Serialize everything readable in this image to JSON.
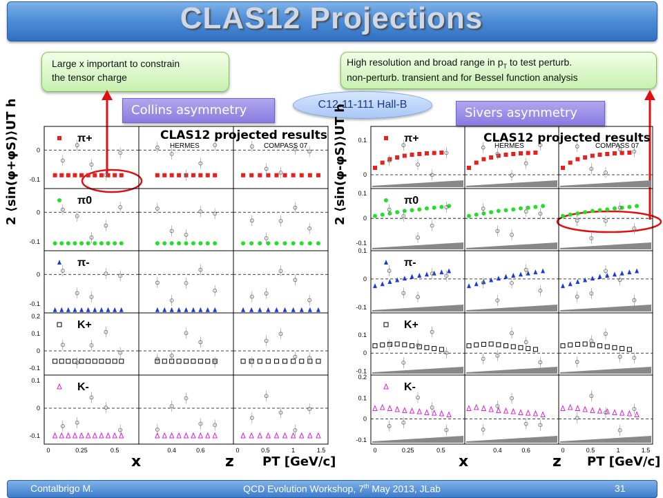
{
  "slide": {
    "title": "CLAS12 Projections",
    "callout_left": [
      "Large x important to constrain",
      "the tensor charge"
    ],
    "callout_right": [
      "High resolution and broad range in p",
      "T",
      " to test perturb.",
      "non-perturb. transient and for Bessel function analysis"
    ],
    "experiment_label": "C12-11-111   Hall-B",
    "collins_label": "Collins asymmetry",
    "sivers_label": "Sivers asymmetry",
    "footer": {
      "author": "Contalbrigo M.",
      "event_pre": "QCD Evolution Workshop, 7",
      "event_sup": "th",
      "event_post": " May 2013, JLab",
      "page": "31"
    }
  },
  "chart_data": [
    {
      "type": "scatter",
      "title": "CLAS12 projected results",
      "ylabel": "2 ⟨sin(φ+φS)⟩UT h",
      "xlabels": [
        "x",
        "z",
        "PT [GeV/c]"
      ],
      "legend": [
        "HERMES",
        "COMPASS 07"
      ],
      "rows": [
        {
          "hadron": "π+",
          "yticks": [
            "0",
            "-0.1"
          ],
          "color": "#e8201c",
          "marker": "square-filled",
          "clas12": {
            "x": [
              0.05,
              0.1,
              0.15,
              0.2,
              0.25,
              0.3,
              0.35,
              0.4,
              0.45,
              0.5,
              0.55
            ],
            "z": [
              0.3,
              0.35,
              0.4,
              0.45,
              0.5,
              0.55,
              0.6,
              0.65,
              0.7
            ],
            "pt": [
              0.1,
              0.25,
              0.4,
              0.55,
              0.7,
              0.85,
              1.0,
              1.15,
              1.3,
              1.45
            ],
            "y": -0.085
          }
        },
        {
          "hadron": "π0",
          "yticks": [
            "0",
            "-0.1"
          ],
          "color": "#22e02a",
          "marker": "circle-filled",
          "clas12": {
            "x": [
              0.05,
              0.1,
              0.15,
              0.2,
              0.25,
              0.3,
              0.35,
              0.4,
              0.45,
              0.5,
              0.55
            ],
            "z": [
              0.3,
              0.35,
              0.4,
              0.45,
              0.5,
              0.55,
              0.6,
              0.65,
              0.7
            ],
            "pt": [
              0.1,
              0.25,
              0.4,
              0.55,
              0.7,
              0.85,
              1.0,
              1.15,
              1.3,
              1.45
            ],
            "y": -0.105
          }
        },
        {
          "hadron": "π-",
          "yticks": [
            "0",
            "-0.1"
          ],
          "color": "#1a3cd8",
          "marker": "triangle-filled",
          "clas12": {
            "x": [
              0.05,
              0.1,
              0.15,
              0.2,
              0.25,
              0.3,
              0.35,
              0.4,
              0.45,
              0.5,
              0.55
            ],
            "z": [
              0.3,
              0.35,
              0.4,
              0.45,
              0.5,
              0.55,
              0.6,
              0.65,
              0.7
            ],
            "pt": [
              0.1,
              0.25,
              0.4,
              0.55,
              0.7,
              0.85,
              1.0,
              1.15,
              1.3,
              1.45
            ],
            "y": -0.12
          }
        },
        {
          "hadron": "K+",
          "yticks": [
            "0.2",
            "0.1",
            "0",
            "-0.1"
          ],
          "color": "#000000",
          "marker": "square-open",
          "clas12": {
            "x": [
              0.05,
              0.1,
              0.15,
              0.2,
              0.25,
              0.3,
              0.35,
              0.4,
              0.45,
              0.5,
              0.55
            ],
            "z": [
              0.3,
              0.35,
              0.4,
              0.45,
              0.5,
              0.55,
              0.6,
              0.65,
              0.7
            ],
            "pt": [
              0.1,
              0.25,
              0.4,
              0.55,
              0.7,
              0.85,
              1.0,
              1.15,
              1.3,
              1.45
            ],
            "y": -0.06
          }
        },
        {
          "hadron": "K-",
          "yticks": [
            "0.1",
            "0",
            "-0.1"
          ],
          "color": "#e020d8",
          "marker": "triangle-open",
          "clas12": {
            "x": [
              0.05,
              0.1,
              0.15,
              0.2,
              0.25,
              0.3,
              0.35,
              0.4,
              0.45,
              0.5,
              0.55
            ],
            "z": [
              0.3,
              0.35,
              0.4,
              0.45,
              0.5,
              0.55,
              0.6,
              0.65,
              0.7
            ],
            "pt": [
              0.1,
              0.25,
              0.4,
              0.55,
              0.7,
              0.85,
              1.0,
              1.15,
              1.3,
              1.45
            ],
            "y": -0.1
          }
        }
      ],
      "xticks": {
        "x": [
          "0",
          "0.25",
          "0.5"
        ],
        "z": [
          "0.4",
          "0.6"
        ],
        "pt": [
          "0",
          "0.5",
          "1",
          "1.5"
        ]
      }
    },
    {
      "type": "scatter",
      "title": "CLAS12 projected results",
      "ylabel": "2 ⟨sin(φ-φS)⟩UT h",
      "xlabels": [
        "x",
        "z",
        "PT [GeV/c]"
      ],
      "legend": [
        "HERMES",
        "COMPASS 07"
      ],
      "rows": [
        {
          "hadron": "π+",
          "yticks": [
            "0.1",
            "0"
          ],
          "color": "#e8201c",
          "marker": "square-filled",
          "clas12": {
            "x": [
              0.05,
              0.1,
              0.15,
              0.2,
              0.25,
              0.3,
              0.35,
              0.4,
              0.45,
              0.5
            ],
            "y": [
              0.02,
              0.035,
              0.045,
              0.05,
              0.055,
              0.058,
              0.06,
              0.062,
              0.063,
              0.064
            ]
          }
        },
        {
          "hadron": "π0",
          "yticks": [
            "0.1",
            "0",
            "-0.1"
          ],
          "color": "#22e02a",
          "marker": "circle-filled",
          "clas12": {
            "x": [
              0.05,
              0.1,
              0.15,
              0.2,
              0.25,
              0.3,
              0.35,
              0.4,
              0.45,
              0.5,
              0.55
            ],
            "y": [
              0.01,
              0.015,
              0.02,
              0.025,
              0.03,
              0.033,
              0.036,
              0.04,
              0.043,
              0.046,
              0.05
            ]
          }
        },
        {
          "hadron": "π-",
          "yticks": [
            "0.1",
            "0",
            "-0.1"
          ],
          "color": "#1a3cd8",
          "marker": "triangle-filled",
          "clas12": {
            "x": [
              0.05,
              0.1,
              0.15,
              0.2,
              0.25,
              0.3,
              0.35,
              0.4,
              0.45,
              0.5,
              0.55
            ],
            "y": [
              -0.025,
              -0.018,
              -0.01,
              -0.004,
              0.002,
              0.008,
              0.012,
              0.016,
              0.02,
              0.024,
              0.028
            ]
          }
        },
        {
          "hadron": "K+",
          "yticks": [
            "0.1",
            "0",
            "-0.1"
          ],
          "color": "#000000",
          "marker": "square-open",
          "clas12": {
            "x": [
              0.05,
              0.1,
              0.15,
              0.2,
              0.25,
              0.3,
              0.35,
              0.4,
              0.45,
              0.5
            ],
            "y": [
              0.04,
              0.045,
              0.048,
              0.05,
              0.046,
              0.04,
              0.035,
              0.03,
              0.025,
              0.02
            ]
          }
        },
        {
          "hadron": "K-",
          "yticks": [
            "0.2",
            "0.1",
            "0",
            "-0.1"
          ],
          "color": "#e020d8",
          "marker": "triangle-open",
          "clas12": {
            "x": [
              0.05,
              0.1,
              0.15,
              0.2,
              0.25,
              0.3,
              0.35,
              0.4,
              0.45,
              0.5,
              0.55
            ],
            "y": [
              0.05,
              0.055,
              0.05,
              0.045,
              0.04,
              0.038,
              0.035,
              0.03,
              0.028,
              0.025,
              0.02
            ]
          }
        }
      ],
      "xticks": {
        "x": [
          "0",
          "0.25",
          "0.5"
        ],
        "z": [
          "0.4",
          "0.6"
        ],
        "pt": [
          "0",
          "0.5",
          "1",
          "1.5"
        ]
      }
    }
  ]
}
